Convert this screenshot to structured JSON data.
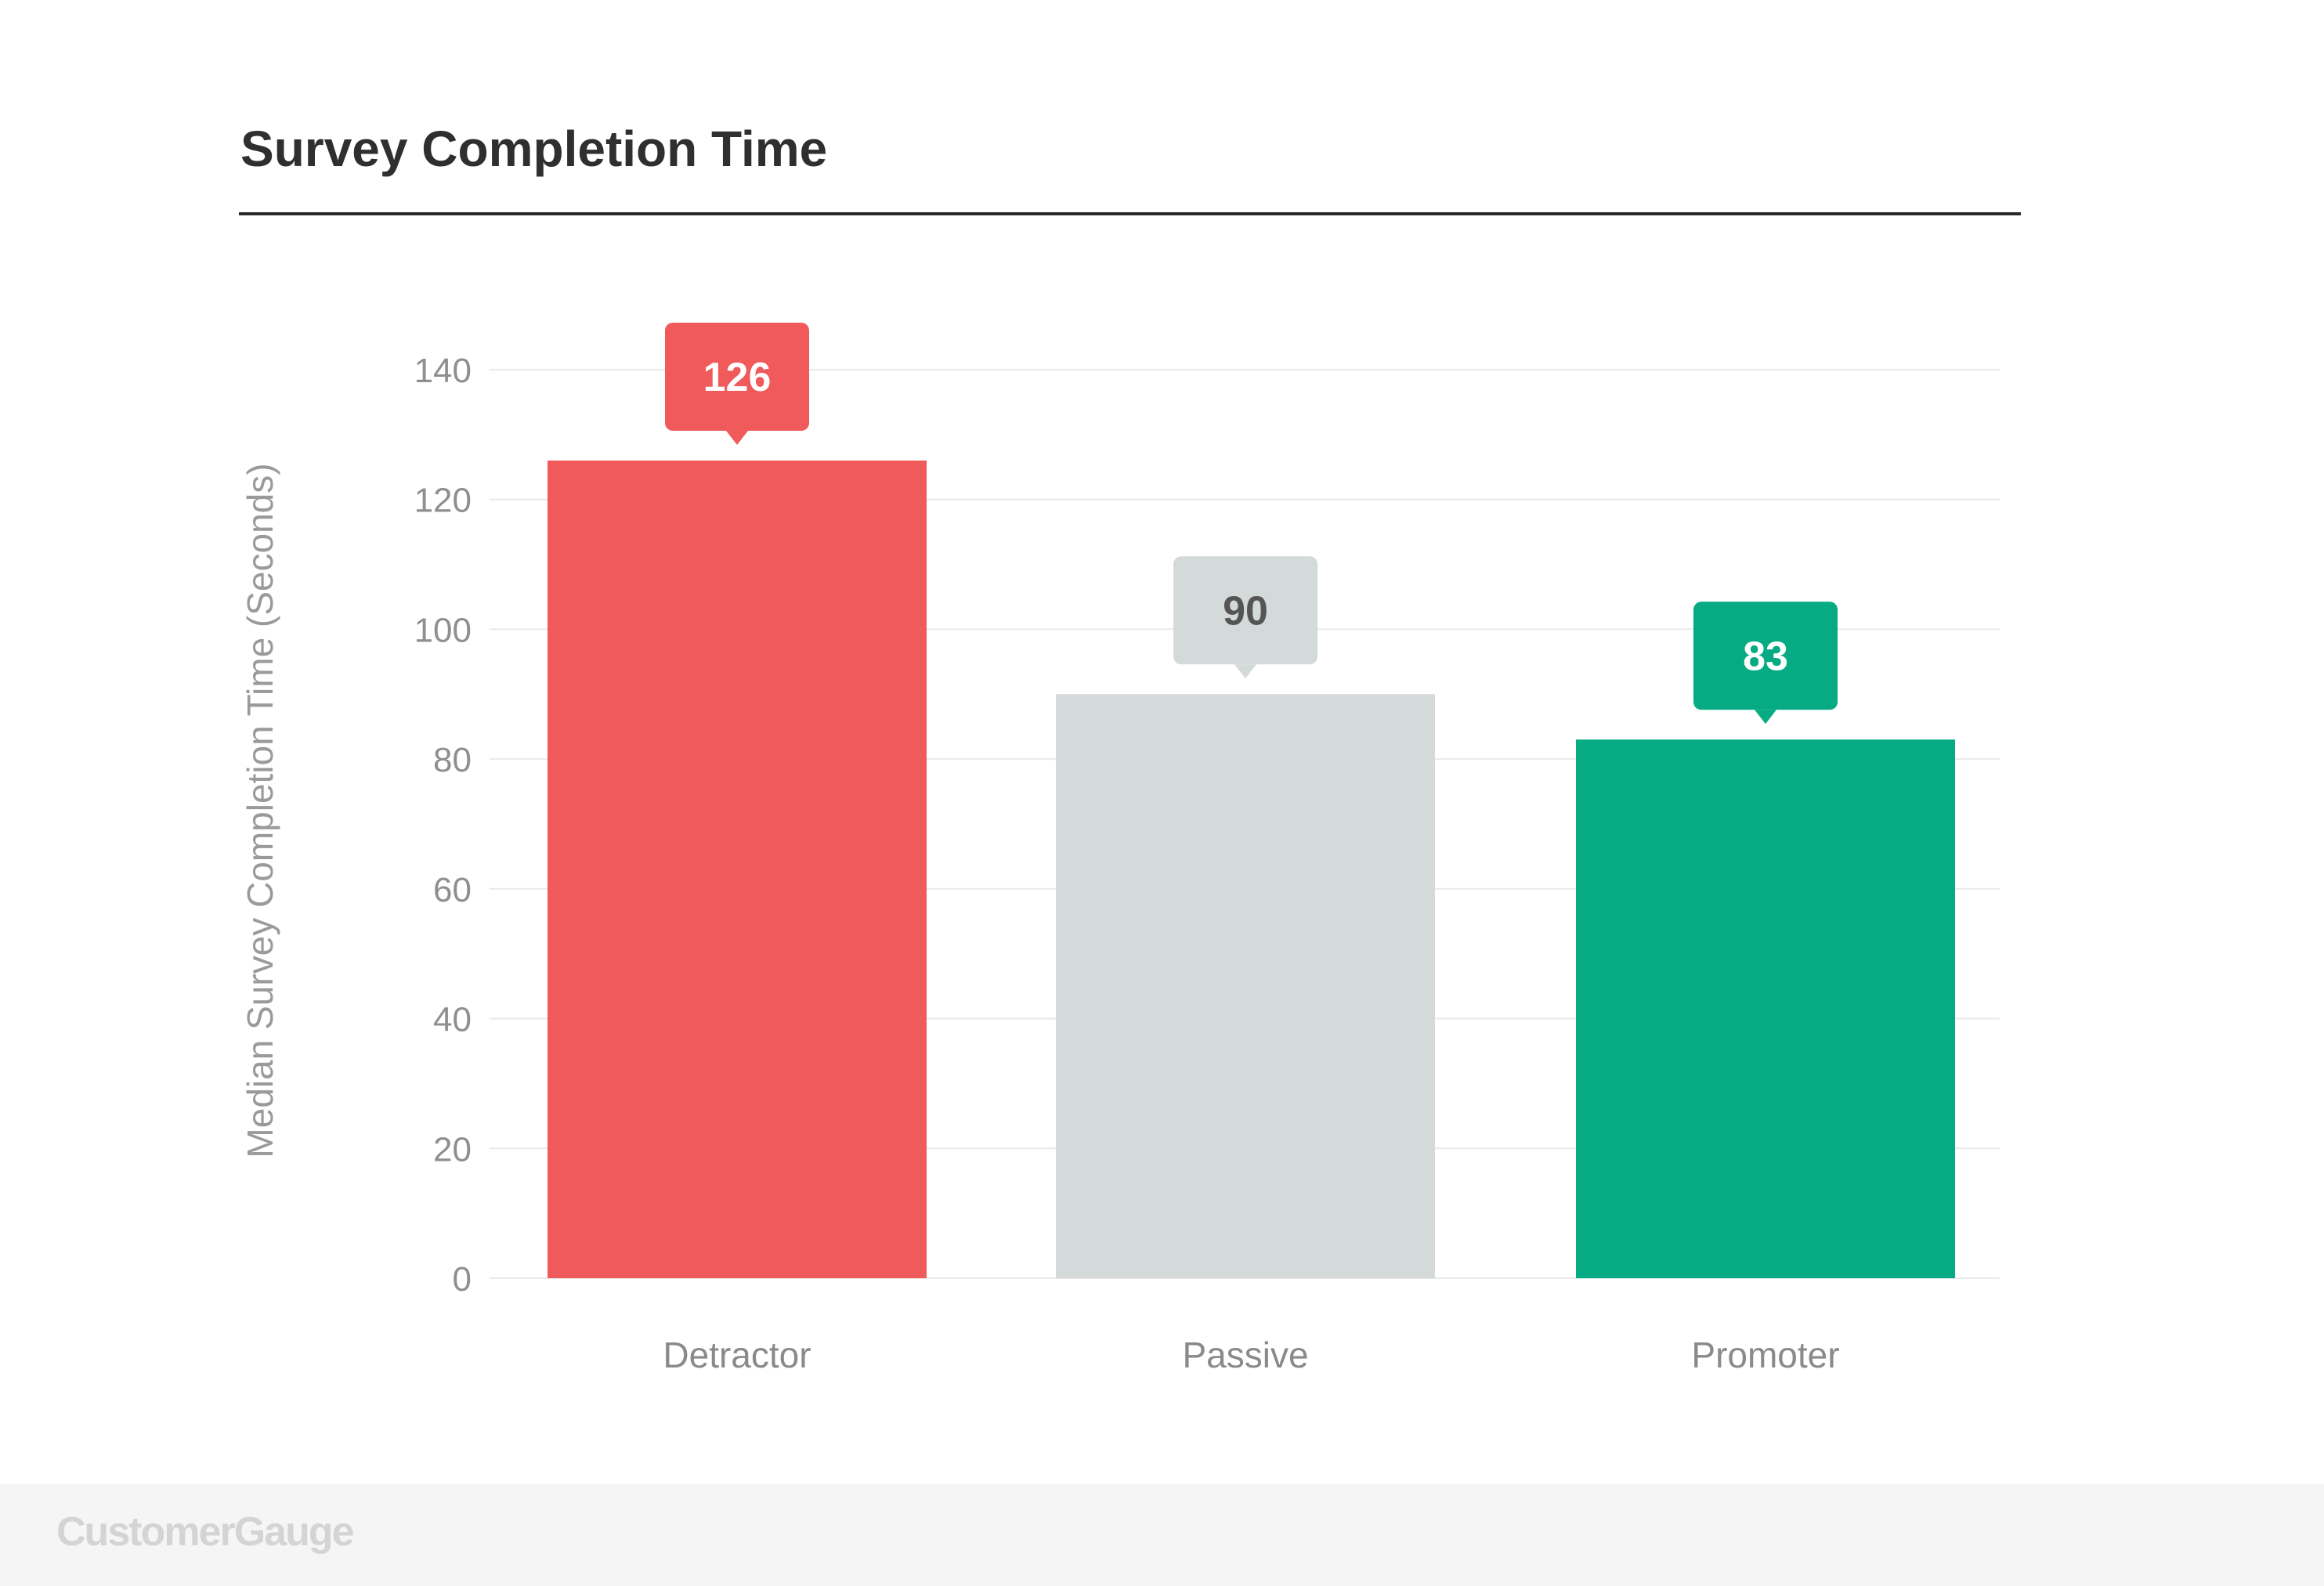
{
  "chart_data": {
    "type": "bar",
    "title": "Survey Completion Time",
    "xlabel": "",
    "ylabel": "Median Survey Completion Time (Seconds)",
    "categories": [
      "Detractor",
      "Passive",
      "Promoter"
    ],
    "values": [
      126,
      90,
      83
    ],
    "data_labels": [
      "126",
      "90",
      "83"
    ],
    "ylim": [
      0,
      140
    ],
    "yticks": [
      0,
      20,
      40,
      60,
      80,
      100,
      120,
      140
    ],
    "grid": true,
    "legend": "none",
    "colors": {
      "bars": [
        "#f05a5a",
        "#d4d9d9",
        "#06ab83"
      ],
      "label_boxes": [
        "#f05a5a",
        "#d4d9d9",
        "#06ab83"
      ],
      "label_text": [
        "#ffffff",
        "#555555",
        "#ffffff"
      ]
    }
  },
  "footer": {
    "brand": "CustomerGauge"
  }
}
